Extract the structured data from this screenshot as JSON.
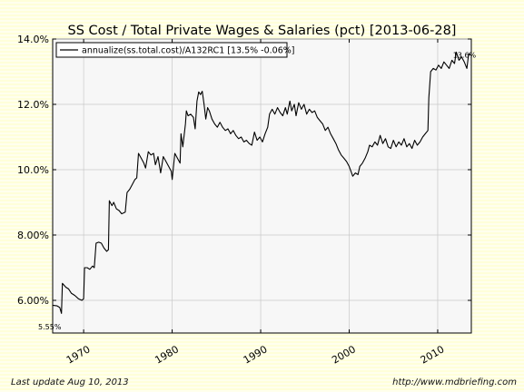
{
  "footer": {
    "last_update": "Last update Aug 10, 2013",
    "url": "http://www.mdbriefing.com"
  },
  "chart_data": {
    "type": "line",
    "title": "SS Cost / Total Private Wages & Salaries (pct) [2013-06-28]",
    "xlabel": "",
    "ylabel": "",
    "xlim": [
      1966.5,
      2013.8
    ],
    "ylim": [
      5.0,
      14.0
    ],
    "xticks": [
      1970,
      1980,
      1990,
      2000,
      2010
    ],
    "xtick_labels": [
      "1970",
      "1980",
      "1990",
      "2000",
      "2010"
    ],
    "yticks": [
      6.0,
      8.0,
      10.0,
      12.0,
      14.0
    ],
    "ytick_labels": [
      "6.00%",
      "8.00%",
      "10.0%",
      "12.0%",
      "14.0%"
    ],
    "grid": true,
    "legend_position": "top-left",
    "series": [
      {
        "name": "annualize(ss.total.cost)/A132RC1 [13.5% -0.06%]",
        "color": "#000000",
        "points": [
          [
            1966.5,
            5.85
          ],
          [
            1967.0,
            5.83
          ],
          [
            1967.3,
            5.78
          ],
          [
            1967.5,
            5.6
          ],
          [
            1967.6,
            6.52
          ],
          [
            1968.0,
            6.4
          ],
          [
            1968.3,
            6.35
          ],
          [
            1968.6,
            6.22
          ],
          [
            1969.0,
            6.15
          ],
          [
            1969.4,
            6.05
          ],
          [
            1969.8,
            6.0
          ],
          [
            1970.0,
            6.05
          ],
          [
            1970.1,
            7.0
          ],
          [
            1970.4,
            7.0
          ],
          [
            1970.7,
            6.95
          ],
          [
            1971.0,
            7.05
          ],
          [
            1971.2,
            7.0
          ],
          [
            1971.4,
            7.75
          ],
          [
            1971.7,
            7.78
          ],
          [
            1972.0,
            7.75
          ],
          [
            1972.3,
            7.6
          ],
          [
            1972.6,
            7.5
          ],
          [
            1972.8,
            7.55
          ],
          [
            1972.9,
            9.05
          ],
          [
            1973.2,
            8.9
          ],
          [
            1973.4,
            9.0
          ],
          [
            1973.7,
            8.8
          ],
          [
            1974.0,
            8.75
          ],
          [
            1974.3,
            8.65
          ],
          [
            1974.7,
            8.7
          ],
          [
            1974.9,
            9.3
          ],
          [
            1975.2,
            9.4
          ],
          [
            1975.5,
            9.55
          ],
          [
            1975.8,
            9.7
          ],
          [
            1976.0,
            9.75
          ],
          [
            1976.2,
            10.5
          ],
          [
            1976.5,
            10.35
          ],
          [
            1976.8,
            10.2
          ],
          [
            1977.0,
            10.05
          ],
          [
            1977.3,
            10.55
          ],
          [
            1977.6,
            10.45
          ],
          [
            1977.9,
            10.5
          ],
          [
            1978.1,
            10.15
          ],
          [
            1978.4,
            10.4
          ],
          [
            1978.7,
            9.9
          ],
          [
            1979.0,
            10.4
          ],
          [
            1979.3,
            10.25
          ],
          [
            1979.6,
            10.1
          ],
          [
            1979.9,
            9.95
          ],
          [
            1980.0,
            9.7
          ],
          [
            1980.3,
            10.5
          ],
          [
            1980.6,
            10.35
          ],
          [
            1980.9,
            10.2
          ],
          [
            1981.0,
            11.1
          ],
          [
            1981.2,
            10.7
          ],
          [
            1981.5,
            11.4
          ],
          [
            1981.6,
            11.8
          ],
          [
            1981.8,
            11.65
          ],
          [
            1982.1,
            11.7
          ],
          [
            1982.4,
            11.6
          ],
          [
            1982.6,
            11.25
          ],
          [
            1982.8,
            12.1
          ],
          [
            1983.0,
            12.38
          ],
          [
            1983.2,
            12.3
          ],
          [
            1983.4,
            12.4
          ],
          [
            1983.6,
            12.0
          ],
          [
            1983.8,
            11.55
          ],
          [
            1984.0,
            11.9
          ],
          [
            1984.2,
            11.8
          ],
          [
            1984.5,
            11.55
          ],
          [
            1984.8,
            11.4
          ],
          [
            1985.1,
            11.3
          ],
          [
            1985.4,
            11.45
          ],
          [
            1985.7,
            11.3
          ],
          [
            1986.0,
            11.2
          ],
          [
            1986.3,
            11.25
          ],
          [
            1986.6,
            11.1
          ],
          [
            1986.9,
            11.2
          ],
          [
            1987.2,
            11.05
          ],
          [
            1987.5,
            10.95
          ],
          [
            1987.8,
            11.0
          ],
          [
            1988.1,
            10.85
          ],
          [
            1988.4,
            10.9
          ],
          [
            1988.7,
            10.8
          ],
          [
            1989.0,
            10.75
          ],
          [
            1989.3,
            11.15
          ],
          [
            1989.6,
            10.9
          ],
          [
            1989.9,
            11.0
          ],
          [
            1990.2,
            10.85
          ],
          [
            1990.5,
            11.1
          ],
          [
            1990.8,
            11.3
          ],
          [
            1991.0,
            11.7
          ],
          [
            1991.3,
            11.85
          ],
          [
            1991.6,
            11.7
          ],
          [
            1991.9,
            11.9
          ],
          [
            1992.2,
            11.75
          ],
          [
            1992.5,
            11.65
          ],
          [
            1992.8,
            11.9
          ],
          [
            1993.0,
            11.7
          ],
          [
            1993.3,
            12.1
          ],
          [
            1993.5,
            11.8
          ],
          [
            1993.8,
            12.0
          ],
          [
            1994.0,
            11.65
          ],
          [
            1994.3,
            12.05
          ],
          [
            1994.6,
            11.85
          ],
          [
            1994.9,
            12.0
          ],
          [
            1995.2,
            11.7
          ],
          [
            1995.5,
            11.85
          ],
          [
            1995.8,
            11.75
          ],
          [
            1996.1,
            11.8
          ],
          [
            1996.4,
            11.6
          ],
          [
            1996.7,
            11.5
          ],
          [
            1997.0,
            11.4
          ],
          [
            1997.3,
            11.2
          ],
          [
            1997.6,
            11.3
          ],
          [
            1997.9,
            11.1
          ],
          [
            1998.2,
            10.95
          ],
          [
            1998.5,
            10.8
          ],
          [
            1998.8,
            10.6
          ],
          [
            1999.1,
            10.45
          ],
          [
            1999.4,
            10.35
          ],
          [
            1999.7,
            10.25
          ],
          [
            2000.0,
            10.1
          ],
          [
            2000.2,
            9.95
          ],
          [
            2000.4,
            9.8
          ],
          [
            2000.7,
            9.9
          ],
          [
            2001.0,
            9.85
          ],
          [
            2001.2,
            10.1
          ],
          [
            2001.5,
            10.2
          ],
          [
            2001.8,
            10.35
          ],
          [
            2002.1,
            10.55
          ],
          [
            2002.3,
            10.75
          ],
          [
            2002.6,
            10.7
          ],
          [
            2002.9,
            10.85
          ],
          [
            2003.2,
            10.75
          ],
          [
            2003.5,
            11.05
          ],
          [
            2003.8,
            10.8
          ],
          [
            2004.1,
            10.95
          ],
          [
            2004.4,
            10.7
          ],
          [
            2004.7,
            10.65
          ],
          [
            2005.0,
            10.9
          ],
          [
            2005.3,
            10.7
          ],
          [
            2005.6,
            10.85
          ],
          [
            2005.9,
            10.75
          ],
          [
            2006.2,
            10.95
          ],
          [
            2006.5,
            10.7
          ],
          [
            2006.8,
            10.8
          ],
          [
            2007.1,
            10.65
          ],
          [
            2007.4,
            10.9
          ],
          [
            2007.7,
            10.75
          ],
          [
            2008.0,
            10.85
          ],
          [
            2008.3,
            11.0
          ],
          [
            2008.6,
            11.1
          ],
          [
            2008.9,
            11.2
          ],
          [
            2009.0,
            12.2
          ],
          [
            2009.2,
            13.0
          ],
          [
            2009.5,
            13.1
          ],
          [
            2009.8,
            13.05
          ],
          [
            2010.1,
            13.2
          ],
          [
            2010.4,
            13.1
          ],
          [
            2010.7,
            13.3
          ],
          [
            2011.0,
            13.2
          ],
          [
            2011.3,
            13.1
          ],
          [
            2011.6,
            13.35
          ],
          [
            2011.9,
            13.25
          ],
          [
            2012.1,
            13.6
          ],
          [
            2012.4,
            13.35
          ],
          [
            2012.7,
            13.45
          ],
          [
            2013.0,
            13.3
          ],
          [
            2013.3,
            13.1
          ],
          [
            2013.5,
            13.55
          ],
          [
            2013.7,
            13.5
          ]
        ]
      }
    ],
    "annotations": [
      {
        "text": "5.55%",
        "x": 1967.5,
        "y": 5.55
      },
      {
        "text": "13.6%",
        "x": 2012.1,
        "y": 13.6
      }
    ]
  }
}
